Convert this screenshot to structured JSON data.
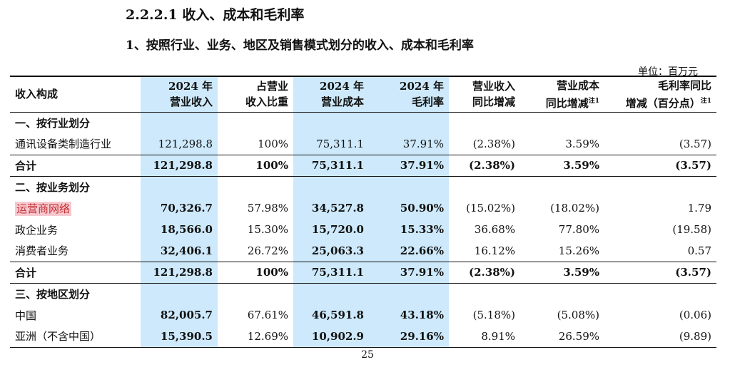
{
  "heading": {
    "section": "2.2.2.1 收入、成本和毛利率",
    "subsection": "1、按照行业、业务、地区及销售模式划分的收入、成本和毛利率"
  },
  "unit": "单位：百万元",
  "columns": [
    {
      "l1": "收入构成",
      "l2": "",
      "note": ""
    },
    {
      "l1": "2024 年",
      "l2": "营业收入",
      "note": ""
    },
    {
      "l1": "占营业",
      "l2": "收入比重",
      "note": ""
    },
    {
      "l1": "2024 年",
      "l2": "营业成本",
      "note": ""
    },
    {
      "l1": "2024 年",
      "l2": "毛利率",
      "note": ""
    },
    {
      "l1": "营业收入",
      "l2": "同比增减",
      "note": ""
    },
    {
      "l1": "营业成本",
      "l2": "同比增减",
      "note": "注1"
    },
    {
      "l1": "毛利率同比",
      "l2": "增减（百分点）",
      "note": "注1"
    }
  ],
  "sections": {
    "industry": {
      "title": "一、按行业划分",
      "rows": [
        {
          "label": "通讯设备类制造行业",
          "revenue": "121,298.8",
          "share": "100%",
          "cost": "75,311.1",
          "margin": "37.91%",
          "rev_yoy": "(2.38%)",
          "cost_yoy": "3.59%",
          "margin_yoy": "(3.57)"
        }
      ],
      "total": {
        "label": "合计",
        "revenue": "121,298.8",
        "share": "100%",
        "cost": "75,311.1",
        "margin": "37.91%",
        "rev_yoy": "(2.38%)",
        "cost_yoy": "3.59%",
        "margin_yoy": "(3.57)"
      }
    },
    "business": {
      "title": "二、按业务划分",
      "rows": [
        {
          "label": "运营商网络",
          "revenue": "70,326.7",
          "share": "57.98%",
          "cost": "34,527.8",
          "margin": "50.90%",
          "rev_yoy": "(15.02%)",
          "cost_yoy": "(18.02%)",
          "margin_yoy": "1.79"
        },
        {
          "label": "政企业务",
          "revenue": "18,566.0",
          "share": "15.30%",
          "cost": "15,720.0",
          "margin": "15.33%",
          "rev_yoy": "36.68%",
          "cost_yoy": "77.80%",
          "margin_yoy": "(19.58)"
        },
        {
          "label": "消费者业务",
          "revenue": "32,406.1",
          "share": "26.72%",
          "cost": "25,063.3",
          "margin": "22.66%",
          "rev_yoy": "16.12%",
          "cost_yoy": "15.26%",
          "margin_yoy": "0.57"
        }
      ],
      "total": {
        "label": "合计",
        "revenue": "121,298.8",
        "share": "100%",
        "cost": "75,311.1",
        "margin": "37.91%",
        "rev_yoy": "(2.38%)",
        "cost_yoy": "3.59%",
        "margin_yoy": "(3.57)"
      }
    },
    "region": {
      "title": "三、按地区划分",
      "rows": [
        {
          "label": "中国",
          "revenue": "82,005.7",
          "share": "67.61%",
          "cost": "46,591.8",
          "margin": "43.18%",
          "rev_yoy": "(5.18%)",
          "cost_yoy": "(5.08%)",
          "margin_yoy": "(0.06)"
        },
        {
          "label": "亚洲（不含中国）",
          "revenue": "15,390.5",
          "share": "12.69%",
          "cost": "10,902.9",
          "margin": "29.16%",
          "rev_yoy": "8.91%",
          "cost_yoy": "26.59%",
          "margin_yoy": "(9.89)"
        }
      ]
    }
  },
  "page_number": "25",
  "colors": {
    "column_highlight": "#cde9fb",
    "text_highlight_bg": "#f6c9cf",
    "text_highlight_fg": "#c32f33"
  }
}
